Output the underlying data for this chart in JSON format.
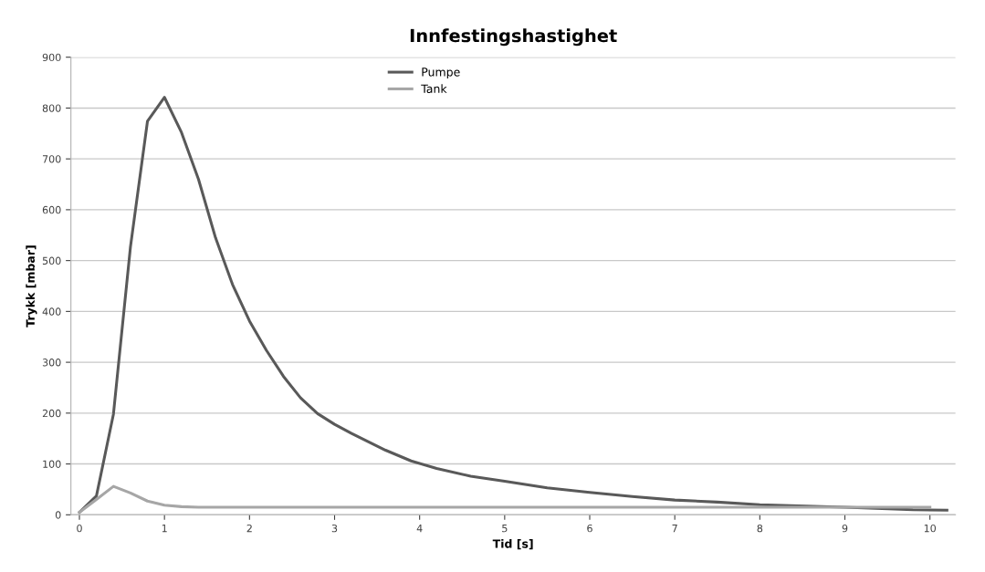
{
  "chart_data": {
    "type": "line",
    "title": "Innfestingshastighet",
    "xlabel": "Tid [s]",
    "ylabel": "Trykk [mbar]",
    "xlim": [
      -0.1,
      10.3
    ],
    "xticks": [
      0,
      1,
      2,
      3,
      4,
      5,
      6,
      7,
      8,
      9,
      10
    ],
    "ylim": [
      0,
      900
    ],
    "yticks": [
      0,
      100,
      200,
      300,
      400,
      500,
      600,
      700,
      800,
      900
    ],
    "grid": "y",
    "legend": "top",
    "marker": "none",
    "line_style": "solid",
    "series": [
      {
        "name": "Pumpe",
        "color": "#595959",
        "x": [
          0,
          0.2,
          0.4,
          0.6,
          0.8,
          1.0,
          1.2,
          1.4,
          1.6,
          1.8,
          2.0,
          2.2,
          2.4,
          2.6,
          2.8,
          3.0,
          3.2,
          3.6,
          3.9,
          4.2,
          4.6,
          5.0,
          5.5,
          6.0,
          6.5,
          7.0,
          7.5,
          8.0,
          9.0,
          9.8,
          10.2
        ],
        "values": [
          5,
          37,
          198,
          527,
          774,
          821,
          752,
          660,
          545,
          453,
          381,
          323,
          272,
          230,
          199,
          178,
          160,
          127,
          106,
          91,
          76,
          66,
          53,
          44,
          36,
          29,
          25,
          20,
          15,
          10,
          9
        ]
      },
      {
        "name": "Tank",
        "color": "#a6a6a6",
        "x": [
          0,
          0.2,
          0.4,
          0.6,
          0.8,
          1.0,
          1.2,
          1.4,
          10.0
        ],
        "values": [
          5,
          30,
          56,
          43,
          27,
          19,
          16,
          15,
          15
        ]
      }
    ]
  }
}
